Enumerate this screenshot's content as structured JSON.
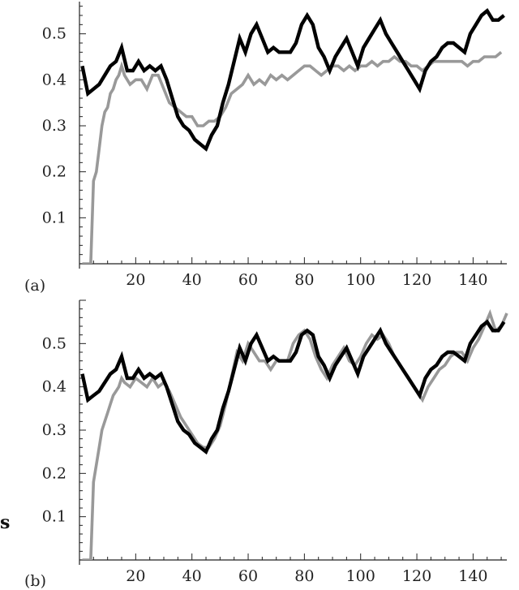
{
  "panels": {
    "a": {
      "label": "(a)"
    },
    "b": {
      "label": "(b)"
    }
  },
  "side_label": "s",
  "chart_data": [
    {
      "type": "line",
      "panel": "(a)",
      "xlim": [
        0,
        152
      ],
      "ylim": [
        0,
        0.57
      ],
      "xticks": [
        20,
        40,
        60,
        80,
        100,
        120,
        140
      ],
      "yticks": [
        0.1,
        0.2,
        0.3,
        0.4,
        0.5
      ],
      "xtick_labels": [
        "20",
        "40",
        "60",
        "80",
        "100",
        "120",
        "140"
      ],
      "ytick_labels": [
        "0.1",
        "0.2",
        "0.3",
        "0.4",
        "0.5"
      ],
      "grid": false,
      "series": [
        {
          "color": "#999999",
          "x": [
            1,
            3,
            4,
            5,
            6,
            7,
            8,
            9,
            10,
            11,
            12,
            13,
            14,
            15,
            16,
            18,
            20,
            22,
            24,
            26,
            28,
            30,
            32,
            34,
            36,
            38,
            40,
            42,
            44,
            46,
            48,
            50,
            52,
            54,
            56,
            58,
            60,
            62,
            64,
            66,
            68,
            70,
            72,
            74,
            76,
            78,
            80,
            82,
            84,
            86,
            88,
            90,
            92,
            94,
            96,
            98,
            100,
            102,
            104,
            106,
            108,
            110,
            112,
            114,
            116,
            118,
            120,
            122,
            124,
            126,
            128,
            130,
            132,
            134,
            136,
            138,
            140,
            142,
            144,
            146,
            148,
            150
          ],
          "y": [
            0.0,
            0.0,
            0.0,
            0.18,
            0.2,
            0.25,
            0.3,
            0.33,
            0.34,
            0.37,
            0.38,
            0.4,
            0.41,
            0.43,
            0.41,
            0.39,
            0.4,
            0.4,
            0.38,
            0.41,
            0.41,
            0.38,
            0.35,
            0.34,
            0.33,
            0.32,
            0.32,
            0.3,
            0.3,
            0.31,
            0.31,
            0.32,
            0.34,
            0.37,
            0.38,
            0.39,
            0.41,
            0.39,
            0.4,
            0.39,
            0.41,
            0.4,
            0.41,
            0.4,
            0.41,
            0.42,
            0.43,
            0.43,
            0.42,
            0.41,
            0.42,
            0.43,
            0.43,
            0.42,
            0.43,
            0.42,
            0.43,
            0.43,
            0.44,
            0.43,
            0.44,
            0.44,
            0.45,
            0.44,
            0.44,
            0.43,
            0.43,
            0.42,
            0.43,
            0.44,
            0.44,
            0.44,
            0.44,
            0.44,
            0.44,
            0.43,
            0.44,
            0.44,
            0.45,
            0.45,
            0.45,
            0.46
          ]
        },
        {
          "color": "#000000",
          "x": [
            1,
            3,
            5,
            7,
            9,
            11,
            13,
            15,
            17,
            19,
            21,
            23,
            25,
            27,
            29,
            31,
            33,
            35,
            37,
            39,
            41,
            43,
            45,
            47,
            49,
            51,
            53,
            55,
            57,
            59,
            61,
            63,
            65,
            67,
            69,
            71,
            73,
            75,
            77,
            79,
            81,
            83,
            85,
            87,
            89,
            91,
            93,
            95,
            97,
            99,
            101,
            103,
            105,
            107,
            109,
            111,
            113,
            115,
            117,
            119,
            121,
            123,
            125,
            127,
            129,
            131,
            133,
            135,
            137,
            139,
            141,
            143,
            145,
            147,
            149,
            151
          ],
          "y": [
            0.43,
            0.37,
            0.38,
            0.39,
            0.41,
            0.43,
            0.44,
            0.47,
            0.42,
            0.42,
            0.44,
            0.42,
            0.43,
            0.42,
            0.43,
            0.4,
            0.36,
            0.32,
            0.3,
            0.29,
            0.27,
            0.26,
            0.25,
            0.28,
            0.3,
            0.35,
            0.39,
            0.44,
            0.49,
            0.46,
            0.5,
            0.52,
            0.49,
            0.46,
            0.47,
            0.46,
            0.46,
            0.46,
            0.48,
            0.52,
            0.54,
            0.52,
            0.47,
            0.45,
            0.42,
            0.45,
            0.47,
            0.49,
            0.46,
            0.43,
            0.47,
            0.49,
            0.51,
            0.53,
            0.5,
            0.48,
            0.46,
            0.44,
            0.42,
            0.4,
            0.38,
            0.42,
            0.44,
            0.45,
            0.47,
            0.48,
            0.48,
            0.47,
            0.46,
            0.5,
            0.52,
            0.54,
            0.55,
            0.53,
            0.53,
            0.54
          ]
        }
      ]
    },
    {
      "type": "line",
      "panel": "(b)",
      "xlim": [
        0,
        152
      ],
      "ylim": [
        0,
        0.6
      ],
      "xticks": [
        20,
        40,
        60,
        80,
        100,
        120,
        140
      ],
      "yticks": [
        0.1,
        0.2,
        0.3,
        0.4,
        0.5
      ],
      "xtick_labels": [
        "20",
        "40",
        "60",
        "80",
        "100",
        "120",
        "140"
      ],
      "ytick_labels": [
        "0.1",
        "0.2",
        "0.3",
        "0.4",
        "0.5"
      ],
      "grid": false,
      "series": [
        {
          "color": "#999999",
          "x": [
            1,
            3,
            4,
            5,
            6,
            7,
            8,
            9,
            10,
            11,
            12,
            13,
            14,
            15,
            16,
            18,
            20,
            22,
            24,
            26,
            28,
            30,
            32,
            34,
            36,
            38,
            40,
            42,
            44,
            46,
            48,
            50,
            52,
            54,
            56,
            58,
            60,
            62,
            64,
            66,
            68,
            70,
            72,
            74,
            76,
            78,
            80,
            82,
            84,
            86,
            88,
            90,
            92,
            94,
            96,
            98,
            100,
            102,
            104,
            106,
            108,
            110,
            112,
            114,
            116,
            118,
            120,
            122,
            124,
            126,
            128,
            130,
            132,
            134,
            136,
            138,
            140,
            142,
            144,
            146,
            148,
            150,
            152
          ],
          "y": [
            0.0,
            0.0,
            0.0,
            0.18,
            0.22,
            0.26,
            0.3,
            0.32,
            0.34,
            0.36,
            0.38,
            0.39,
            0.4,
            0.42,
            0.41,
            0.4,
            0.42,
            0.41,
            0.4,
            0.42,
            0.4,
            0.41,
            0.39,
            0.36,
            0.33,
            0.31,
            0.29,
            0.27,
            0.26,
            0.26,
            0.28,
            0.31,
            0.36,
            0.42,
            0.48,
            0.46,
            0.5,
            0.48,
            0.46,
            0.46,
            0.44,
            0.46,
            0.46,
            0.46,
            0.5,
            0.52,
            0.53,
            0.51,
            0.47,
            0.44,
            0.42,
            0.45,
            0.47,
            0.49,
            0.46,
            0.45,
            0.47,
            0.5,
            0.52,
            0.51,
            0.52,
            0.5,
            0.47,
            0.45,
            0.43,
            0.41,
            0.39,
            0.37,
            0.4,
            0.42,
            0.44,
            0.45,
            0.47,
            0.48,
            0.48,
            0.46,
            0.49,
            0.51,
            0.54,
            0.57,
            0.53,
            0.54,
            0.57
          ]
        },
        {
          "color": "#000000",
          "x": [
            1,
            3,
            5,
            7,
            9,
            11,
            13,
            15,
            17,
            19,
            21,
            23,
            25,
            27,
            29,
            31,
            33,
            35,
            37,
            39,
            41,
            43,
            45,
            47,
            49,
            51,
            53,
            55,
            57,
            59,
            61,
            63,
            65,
            67,
            69,
            71,
            73,
            75,
            77,
            79,
            81,
            83,
            85,
            87,
            89,
            91,
            93,
            95,
            97,
            99,
            101,
            103,
            105,
            107,
            109,
            111,
            113,
            115,
            117,
            119,
            121,
            123,
            125,
            127,
            129,
            131,
            133,
            135,
            137,
            139,
            141,
            143,
            145,
            147,
            149,
            151
          ],
          "y": [
            0.43,
            0.37,
            0.38,
            0.39,
            0.41,
            0.43,
            0.44,
            0.47,
            0.42,
            0.42,
            0.44,
            0.42,
            0.43,
            0.42,
            0.43,
            0.4,
            0.36,
            0.32,
            0.3,
            0.29,
            0.27,
            0.26,
            0.25,
            0.28,
            0.3,
            0.35,
            0.39,
            0.44,
            0.49,
            0.46,
            0.5,
            0.52,
            0.49,
            0.46,
            0.47,
            0.46,
            0.46,
            0.46,
            0.48,
            0.52,
            0.53,
            0.52,
            0.47,
            0.45,
            0.42,
            0.45,
            0.47,
            0.49,
            0.46,
            0.43,
            0.47,
            0.49,
            0.51,
            0.53,
            0.5,
            0.48,
            0.46,
            0.44,
            0.42,
            0.4,
            0.38,
            0.42,
            0.44,
            0.45,
            0.47,
            0.48,
            0.48,
            0.47,
            0.46,
            0.5,
            0.52,
            0.54,
            0.55,
            0.53,
            0.53,
            0.55
          ]
        }
      ]
    }
  ]
}
